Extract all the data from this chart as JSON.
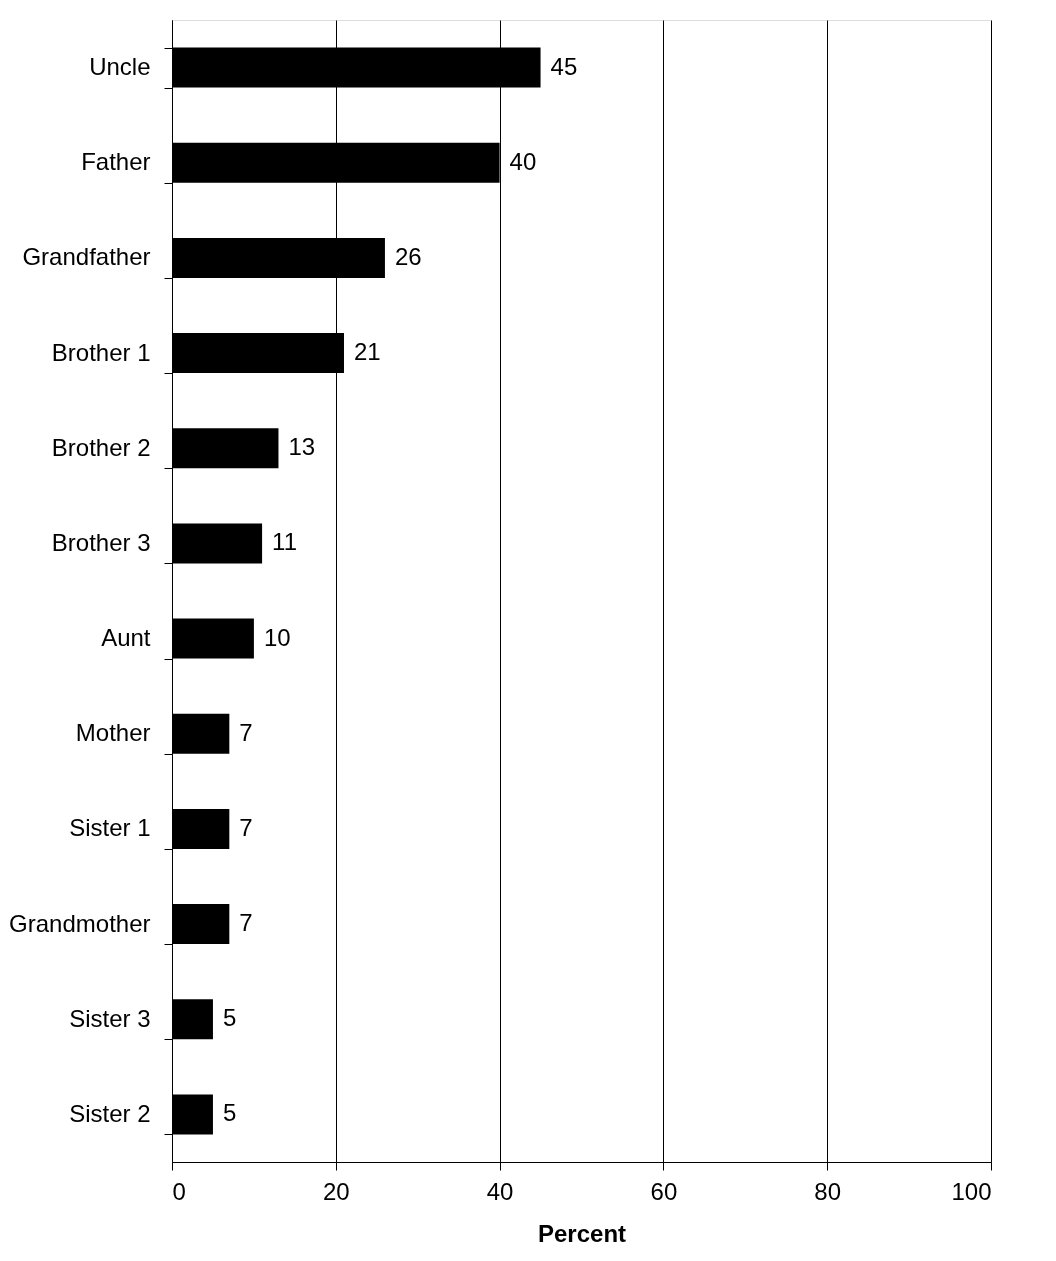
{
  "chart_data": {
    "type": "bar",
    "orientation": "horizontal",
    "xlabel": "Percent",
    "categories": [
      "Uncle",
      "Father",
      "Grandfather",
      "Brother 1",
      "Brother 2",
      "Brother 3",
      "Aunt",
      "Mother",
      "Sister 1",
      "Grandmother",
      "Sister 3",
      "Sister 2"
    ],
    "values": [
      45,
      40,
      26,
      21,
      13,
      11,
      10,
      7,
      7,
      7,
      5,
      5
    ],
    "color": "#000000",
    "xlim": [
      0,
      100
    ],
    "xticks": [
      0,
      20,
      40,
      60,
      80,
      100
    ],
    "grid": "x",
    "data_labels": true
  }
}
